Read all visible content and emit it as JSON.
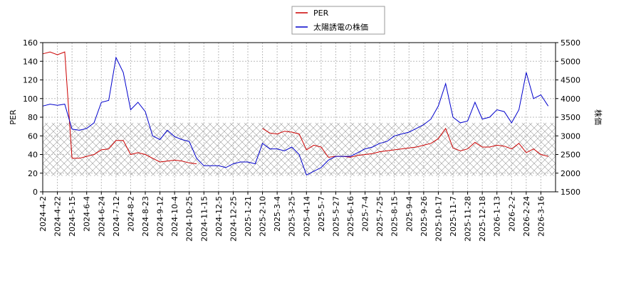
{
  "chart_data": {
    "type": "line",
    "y_label": "PER",
    "y2_label": "株価",
    "categories": [
      "2024-4-2",
      null,
      "2024-4-22",
      null,
      "2024-5-15",
      null,
      "2024-6-4",
      null,
      "2024-6-24",
      null,
      "2024-7-12",
      null,
      "2024-8-2",
      null,
      "2024-8-23",
      null,
      "2024-9-12",
      null,
      "2024-10-4",
      null,
      "2024-10-25",
      null,
      "2024-11-15",
      null,
      "2024-12-5",
      null,
      "2024-12-25",
      null,
      "2025-1-21",
      null,
      "2025-2-10",
      null,
      "2025-3-4",
      null,
      "2025-3-25",
      null,
      "2025-4-14",
      null,
      "2025-5-7",
      null,
      "2025-5-27",
      null,
      "2025-6-16",
      null,
      "2025-7-4",
      null,
      "2025-7-25",
      null,
      "2025-8-15",
      null,
      "2025-9-4",
      null,
      "2025-9-26",
      null,
      "2025-10-17",
      null,
      "2025-11-7",
      null,
      "2025-11-28",
      null,
      "2025-12-18",
      null,
      "2026-1-13",
      null,
      "2026-2-2",
      null,
      "2026-2-24",
      null,
      "2026-3-16",
      null
    ],
    "series": [
      {
        "name": "PER",
        "color": "#cc0000",
        "values": [
          148,
          150,
          147,
          150,
          36,
          36,
          38,
          40,
          45,
          46,
          55,
          55,
          40,
          42,
          40,
          36,
          32,
          33,
          34,
          33,
          31,
          30,
          null,
          null,
          null,
          null,
          null,
          null,
          null,
          null,
          68,
          63,
          62,
          65,
          64,
          62,
          45,
          50,
          48,
          37,
          38,
          38,
          37,
          39,
          40,
          41,
          43,
          44,
          45,
          46,
          47,
          48,
          50,
          52,
          57,
          68,
          47,
          44,
          46,
          53,
          48,
          48,
          50,
          49,
          46,
          52,
          42,
          46,
          40,
          38
        ]
      },
      {
        "name": "太陽誘電の株価",
        "color": "#0000cc",
        "axis": "y2",
        "values": [
          3800,
          3850,
          3820,
          3850,
          3180,
          3150,
          3200,
          3350,
          3900,
          3950,
          5100,
          4700,
          3700,
          3900,
          3650,
          3000,
          2900,
          3150,
          2980,
          2900,
          2850,
          2400,
          2200,
          2200,
          2200,
          2150,
          2250,
          2300,
          2300,
          2250,
          2800,
          2650,
          2650,
          2600,
          2700,
          2500,
          1950,
          2050,
          2150,
          2350,
          2450,
          2450,
          2450,
          2550,
          2650,
          2700,
          2800,
          2850,
          3000,
          3050,
          3100,
          3200,
          3300,
          3450,
          3800,
          4400,
          3500,
          3350,
          3400,
          3900,
          3450,
          3500,
          3700,
          3650,
          3350,
          3700,
          4700,
          4000,
          4100,
          3800
        ]
      }
    ],
    "ylim": [
      0,
      160
    ],
    "yticks": [
      0,
      20,
      40,
      60,
      80,
      100,
      120,
      140,
      160
    ],
    "y2lim": [
      1500,
      5500
    ],
    "y2ticks": [
      1500,
      2000,
      2500,
      3000,
      3500,
      4000,
      4500,
      5000,
      5500
    ],
    "band": [
      17,
      74
    ],
    "grid": true
  }
}
